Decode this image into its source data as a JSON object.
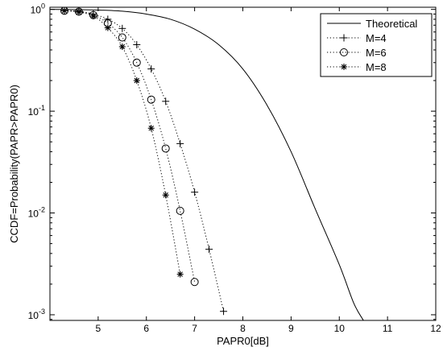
{
  "chart_data": {
    "type": "line",
    "xlabel": "PAPR0[dB]",
    "ylabel": "CCDF=Probability(PAPR>PAPR0)",
    "xlim": [
      4,
      12
    ],
    "ylim": [
      0.00088,
      1.05
    ],
    "yscale": "log",
    "x_ticks": [
      5,
      6,
      7,
      8,
      9,
      10,
      11,
      12
    ],
    "y_ticks": [
      {
        "value": 1,
        "base": "10",
        "exp": "0"
      },
      {
        "value": 0.1,
        "base": "10",
        "exp": "-1"
      },
      {
        "value": 0.01,
        "base": "10",
        "exp": "-2"
      },
      {
        "value": 0.001,
        "base": "10",
        "exp": "-3"
      }
    ],
    "grid": false,
    "legend_position": "top-right",
    "series": [
      {
        "name": "Theoretical",
        "line": "solid",
        "marker": "none",
        "x": [
          4.0,
          4.5,
          5.0,
          5.5,
          6.0,
          6.5,
          7.0,
          7.5,
          8.0,
          8.5,
          9.0,
          9.5,
          10.0,
          10.3,
          10.5
        ],
        "y": [
          1.0,
          0.995,
          0.985,
          0.96,
          0.9,
          0.8,
          0.64,
          0.45,
          0.26,
          0.115,
          0.04,
          0.011,
          0.0031,
          0.0013,
          0.00088
        ]
      },
      {
        "name": "M=4",
        "line": "dotted",
        "marker": "plus",
        "x": [
          4.3,
          4.6,
          4.9,
          5.2,
          5.5,
          5.8,
          6.1,
          6.4,
          6.7,
          7.0,
          7.3,
          7.6
        ],
        "y": [
          0.97,
          0.96,
          0.9,
          0.8,
          0.65,
          0.45,
          0.26,
          0.125,
          0.048,
          0.016,
          0.0044,
          0.00108
        ]
      },
      {
        "name": "M=6",
        "line": "dotted",
        "marker": "circle",
        "x": [
          4.3,
          4.6,
          4.9,
          5.2,
          5.5,
          5.8,
          6.1,
          6.4,
          6.7,
          7.0
        ],
        "y": [
          0.97,
          0.95,
          0.88,
          0.73,
          0.53,
          0.3,
          0.13,
          0.043,
          0.0105,
          0.0021
        ]
      },
      {
        "name": "M=8",
        "line": "dotted",
        "marker": "asterisk",
        "x": [
          4.3,
          4.6,
          4.9,
          5.2,
          5.5,
          5.8,
          6.1,
          6.4,
          6.7
        ],
        "y": [
          0.97,
          0.94,
          0.86,
          0.66,
          0.43,
          0.2,
          0.068,
          0.015,
          0.0025
        ]
      }
    ]
  }
}
